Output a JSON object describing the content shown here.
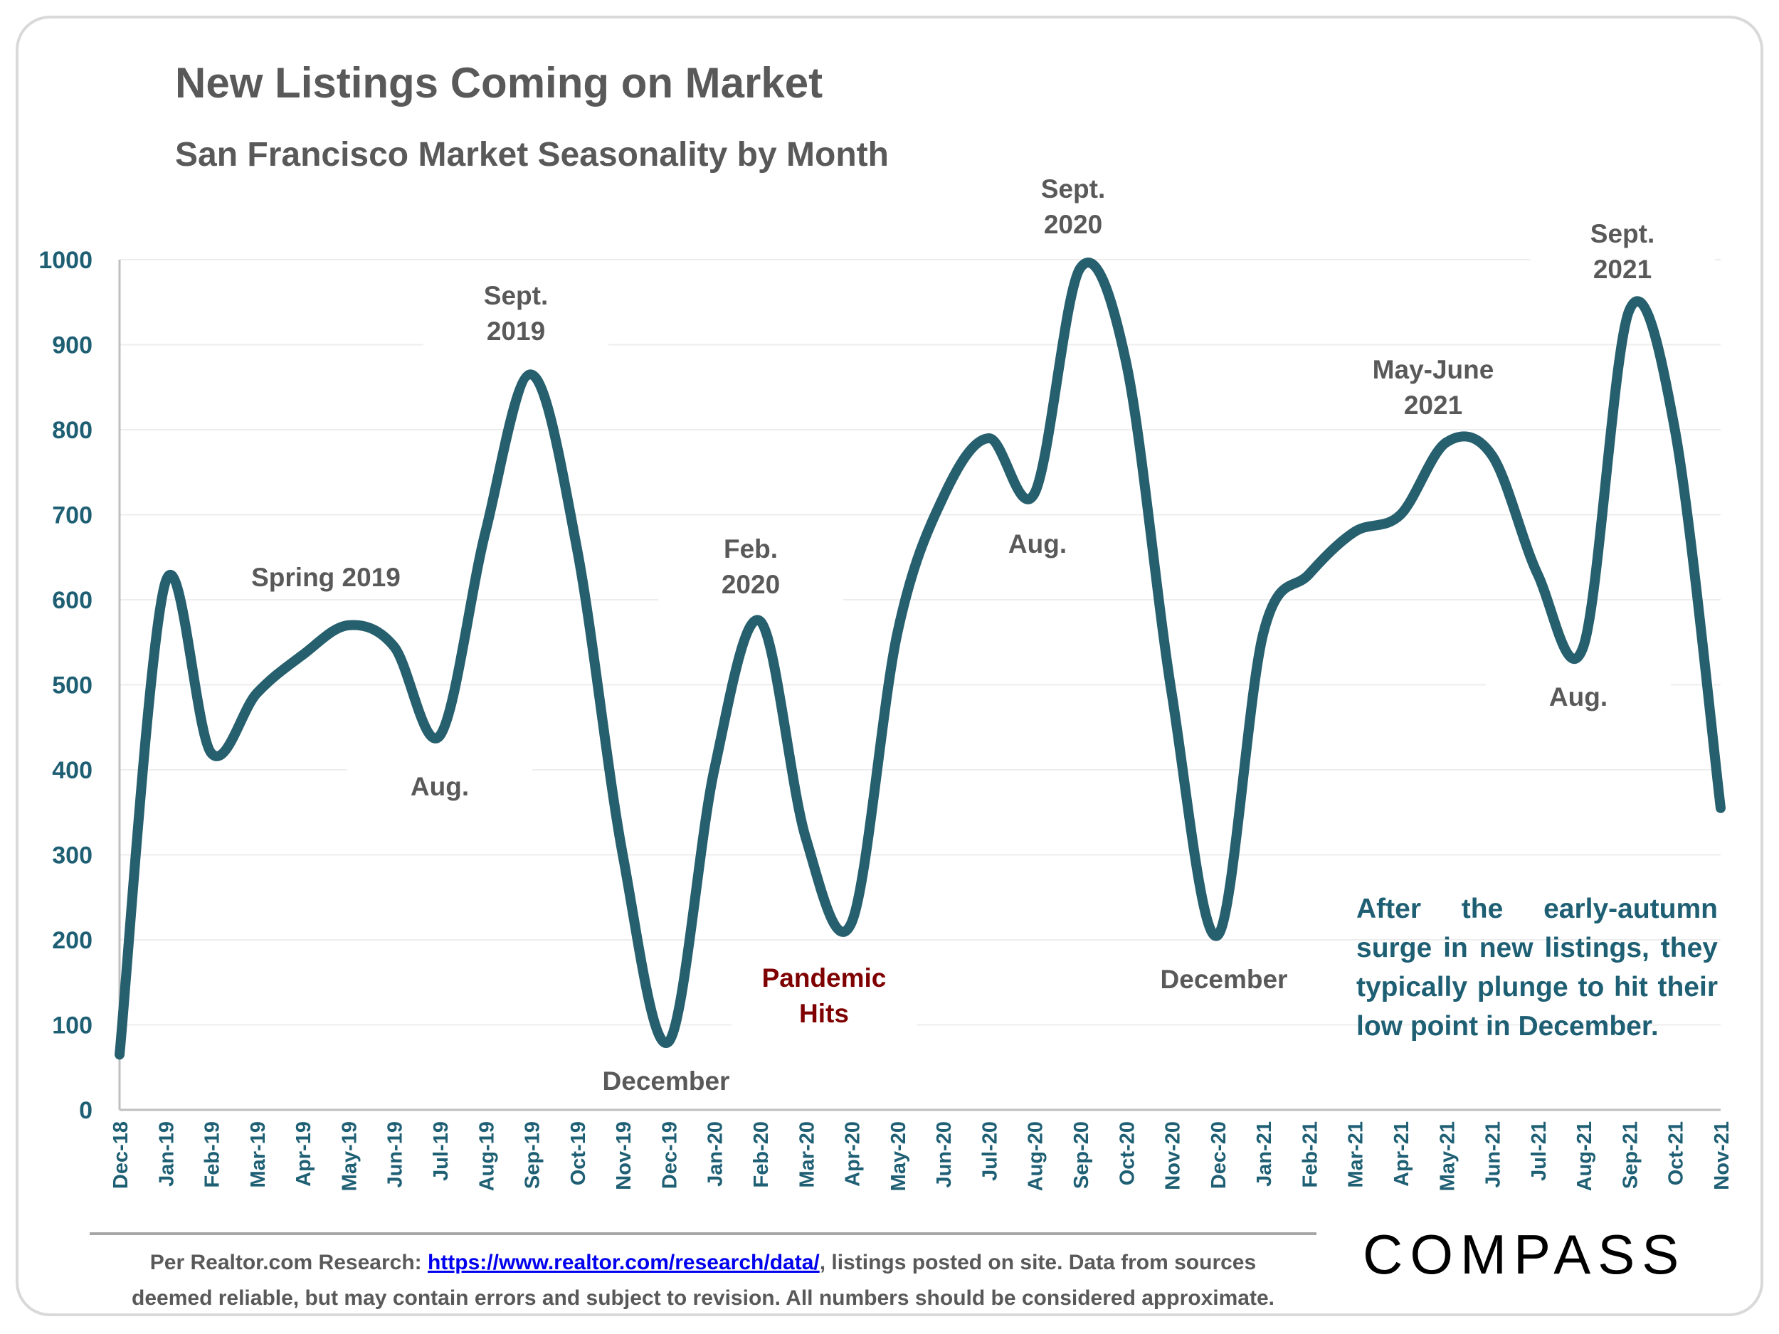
{
  "header": {
    "title": "New Listings Coming on Market",
    "subtitle": "San Francisco Market Seasonality by Month"
  },
  "callout": "After the early-autumn surge in new listings, they typically plunge to hit their low point in December.",
  "footer": {
    "prefix": "Per Realtor.com Research:",
    "link": "https://www.realtor.com/research/data/",
    "line1_suffix": ", listings posted on site. Data from sources",
    "line2": "deemed reliable, but may contain errors and subject to revision. All numbers should be considered approximate."
  },
  "brand": {
    "logo": "COMPASS"
  },
  "colors": {
    "line": "#265f6d",
    "axis_labels": "#1e5f74",
    "pandemic": "#7f0000",
    "text": "#595959"
  },
  "chart_data": {
    "type": "line",
    "title": "New Listings Coming on Market",
    "subtitle": "San Francisco Market Seasonality by Month",
    "xlabel": "",
    "ylabel": "",
    "ylim": [
      0,
      1000
    ],
    "yticks": [
      0,
      100,
      200,
      300,
      400,
      500,
      600,
      700,
      800,
      900,
      1000
    ],
    "grid": true,
    "categories": [
      "Dec-18",
      "Jan-19",
      "Feb-19",
      "Mar-19",
      "Apr-19",
      "May-19",
      "Jun-19",
      "Jul-19",
      "Aug-19",
      "Sep-19",
      "Oct-19",
      "Nov-19",
      "Dec-19",
      "Jan-20",
      "Feb-20",
      "Mar-20",
      "Apr-20",
      "May-20",
      "Jun-20",
      "Jul-20",
      "Aug-20",
      "Sep-20",
      "Oct-20",
      "Nov-20",
      "Dec-20",
      "Jan-21",
      "Feb-21",
      "Mar-21",
      "Apr-21",
      "May-21",
      "Jun-21",
      "Jul-21",
      "Aug-21",
      "Sep-21",
      "Oct-21",
      "Nov-21"
    ],
    "series": [
      {
        "name": "New Listings",
        "values": [
          65,
          620,
          420,
          490,
          535,
          570,
          545,
          440,
          680,
          865,
          660,
          300,
          80,
          400,
          575,
          320,
          220,
          560,
          720,
          790,
          725,
          990,
          880,
          490,
          205,
          560,
          630,
          680,
          700,
          785,
          770,
          630,
          545,
          940,
          800,
          355
        ]
      }
    ],
    "annotations": [
      {
        "text": "Spring 2019",
        "at": "Apr-19",
        "color": "#595959"
      },
      {
        "text": "Aug.",
        "at": "Jul-19",
        "color": "#595959"
      },
      {
        "text": "Sept.\n2019",
        "at": "Sep-19",
        "color": "#595959"
      },
      {
        "text": "December",
        "at": "Dec-19",
        "color": "#595959"
      },
      {
        "text": "Feb.\n2020",
        "at": "Feb-20",
        "color": "#595959"
      },
      {
        "text": "Pandemic\nHits",
        "at": "Mar-20",
        "color": "#7f0000"
      },
      {
        "text": "Aug.",
        "at": "Aug-20",
        "color": "#595959"
      },
      {
        "text": "Sept.\n2020",
        "at": "Sep-20",
        "color": "#595959"
      },
      {
        "text": "December",
        "at": "Dec-20",
        "color": "#595959"
      },
      {
        "text": "May-June\n2021",
        "at": "May-21",
        "color": "#595959"
      },
      {
        "text": "Aug.",
        "at": "Aug-21",
        "color": "#595959"
      },
      {
        "text": "Sept.\n2021",
        "at": "Sep-21",
        "color": "#595959"
      }
    ]
  }
}
